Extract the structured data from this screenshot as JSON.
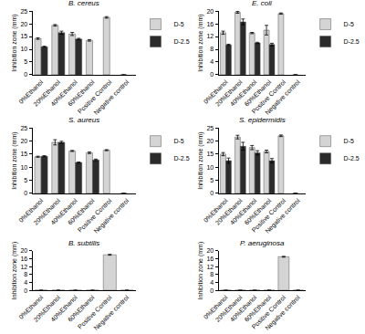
{
  "chart_data": [
    {
      "type": "bar",
      "title": "B. cereus",
      "y_label": "Inhibition zone (mm)",
      "categories": [
        "0%Ethanol",
        "20%Ethanol",
        "40%Ethanol",
        "60%Ethanol",
        "Positive Control",
        "Negative control"
      ],
      "ylim": [
        0,
        25
      ],
      "yticks": [
        0,
        5,
        10,
        15,
        20,
        25
      ],
      "legend": "right",
      "series": [
        {
          "name": "D-5",
          "color": "#d4d4d4",
          "values": [
            14.2,
            19.4,
            16.0,
            13.5,
            22.5,
            0
          ],
          "errors": [
            0.3,
            0.3,
            0.6,
            0.3,
            0.3,
            null
          ]
        },
        {
          "name": "D-2.5",
          "color": "#2b2b2b",
          "values": [
            11.0,
            16.5,
            14.0,
            null,
            null,
            null
          ],
          "errors": [
            0.2,
            0.6,
            0.3,
            null,
            null,
            null
          ]
        }
      ]
    },
    {
      "type": "bar",
      "title": "E. coli",
      "y_label": "Inhibition zone (mm)",
      "categories": [
        "0%Ethanol",
        "20%Ethanol",
        "40%Ethanol",
        "60%Ethanol",
        "Positive Control",
        "Negative control"
      ],
      "ylim": [
        0,
        20
      ],
      "yticks": [
        0,
        4,
        8,
        12,
        16,
        20
      ],
      "legend": "right",
      "series": [
        {
          "name": "D-5",
          "color": "#d4d4d4",
          "values": [
            13.2,
            19.6,
            13.1,
            14.0,
            19.2,
            0
          ],
          "errors": [
            0.5,
            0.3,
            0.2,
            1.5,
            0.2,
            null
          ]
        },
        {
          "name": "D-2.5",
          "color": "#2b2b2b",
          "values": [
            9.4,
            16.6,
            10.0,
            9.5,
            null,
            null
          ],
          "errors": [
            0.2,
            0.9,
            0.2,
            0.4,
            null,
            null
          ]
        }
      ]
    },
    {
      "type": "bar",
      "title": "S. aureus",
      "y_label": "Inhibition zone (mm)",
      "categories": [
        "0%Ethanol",
        "20%Ethanol",
        "40%Ethanol",
        "60%Ethanol",
        "Positive Control",
        "Negative control"
      ],
      "ylim": [
        0,
        25
      ],
      "yticks": [
        0,
        5,
        10,
        15,
        20,
        25
      ],
      "legend": "right",
      "series": [
        {
          "name": "D-5",
          "color": "#d4d4d4",
          "values": [
            14.0,
            19.5,
            16.2,
            15.5,
            16.5,
            0
          ],
          "errors": [
            0.2,
            1.0,
            0.2,
            0.3,
            0.2,
            null
          ]
        },
        {
          "name": "D-2.5",
          "color": "#2b2b2b",
          "values": [
            14.2,
            19.5,
            11.8,
            12.8,
            null,
            null
          ],
          "errors": [
            0.2,
            0.4,
            0.2,
            0.3,
            null,
            null
          ]
        }
      ]
    },
    {
      "type": "bar",
      "title": "S. epidermidis",
      "y_label": "Inhibition zone (mm)",
      "categories": [
        "0%Ethanol",
        "20%Ethanol",
        "40%Ethanol",
        "60%Ethanol",
        "Positive Control",
        "Negative control"
      ],
      "ylim": [
        0,
        25
      ],
      "yticks": [
        0,
        5,
        10,
        15,
        20,
        25
      ],
      "legend": "right",
      "series": [
        {
          "name": "D-5",
          "color": "#d4d4d4",
          "values": [
            15.0,
            21.5,
            17.5,
            16.0,
            22.0,
            0
          ],
          "errors": [
            0.6,
            0.7,
            0.8,
            0.5,
            0.3,
            null
          ]
        },
        {
          "name": "D-2.5",
          "color": "#2b2b2b",
          "values": [
            12.5,
            18.0,
            15.5,
            12.5,
            null,
            null
          ],
          "errors": [
            1.0,
            1.5,
            0.8,
            0.8,
            null,
            null
          ]
        }
      ]
    },
    {
      "type": "bar",
      "title": "B. subtilis",
      "y_label": "Inhibition zone (mm)",
      "categories": [
        "0%Ethanol",
        "20%Ethanol",
        "40%Ethanol",
        "60%Ethanol",
        "Positive Control",
        "Negative control"
      ],
      "ylim": [
        0,
        20
      ],
      "yticks": [
        0,
        4,
        8,
        12,
        16,
        20
      ],
      "series": [
        {
          "color": "#d4d4d4",
          "values": [
            0,
            0,
            0,
            0,
            18.0,
            0
          ],
          "errors": [
            null,
            null,
            null,
            null,
            0.2,
            null
          ]
        }
      ]
    },
    {
      "type": "bar",
      "title": "P. aeruginosa",
      "y_label": "Inhibition zone (mm)",
      "categories": [
        "0%Ethanol",
        "20%Ethanol",
        "40%Ethanol",
        "60%Ethanol",
        "Positive Control",
        "Negative control"
      ],
      "ylim": [
        0,
        20
      ],
      "yticks": [
        0,
        4,
        8,
        12,
        16,
        20
      ],
      "series": [
        {
          "color": "#d4d4d4",
          "values": [
            0,
            0,
            0,
            0,
            17.0,
            0
          ],
          "errors": [
            null,
            null,
            null,
            null,
            0.2,
            null
          ]
        }
      ]
    }
  ]
}
